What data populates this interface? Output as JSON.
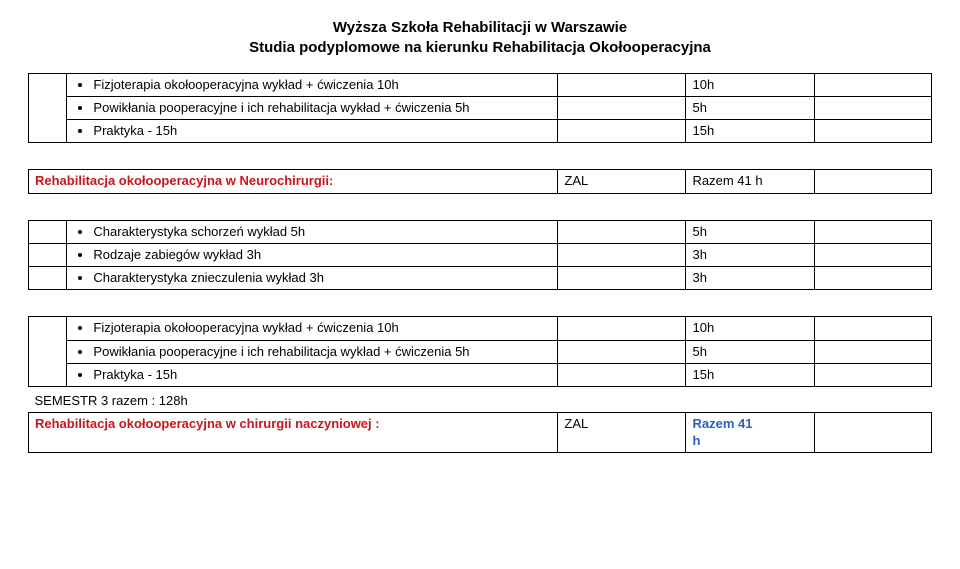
{
  "header": {
    "line1": "Wyższa Szkoła Rehabilitacji w Warszawie",
    "line2": "Studia podyplomowe na kierunku Rehabilitacja Okołooperacyjna"
  },
  "colors": {
    "text": "#000000",
    "red": "#c8161d",
    "blue": "#2e5fbf",
    "border": "#000000",
    "background": "#ffffff"
  },
  "rows": [
    {
      "bullet": "Fizjoterapia okołooperacyjna wykład + ćwiczenia 10h",
      "h": "10h"
    },
    {
      "bullet": "Powikłania pooperacyjne i ich rehabilitacja wykład + ćwiczenia 5h",
      "h": "5h"
    },
    {
      "bullet": "Praktyka - 15h",
      "h": "15h"
    }
  ],
  "section1": {
    "title": "Rehabilitacja okołooperacyjna w Neurochirurgii:",
    "zal": "ZAL",
    "razem": "Razem 41 h"
  },
  "rows2": [
    {
      "bullet": "Charakterystyka schorzeń wykład 5h",
      "h": "5h"
    },
    {
      "bullet": "Rodzaje zabiegów wykład 3h",
      "h": "3h"
    },
    {
      "bullet": "Charakterystyka znieczulenia wykład 3h",
      "h": "3h"
    }
  ],
  "rows3": [
    {
      "bullet": "Fizjoterapia okołooperacyjna wykład + ćwiczenia 10h",
      "h": "10h"
    },
    {
      "bullet": "Powikłania pooperacyjne i ich rehabilitacja wykład + ćwiczenia  5h",
      "h": "5h"
    },
    {
      "bullet": "Praktyka - 15h",
      "h": "15h"
    }
  ],
  "semester": {
    "label": "SEMESTR 3 razem : 128h"
  },
  "section2": {
    "title": "Rehabilitacja okołooperacyjna w chirurgii naczyniowej :",
    "zal": "ZAL",
    "razem1": "Razem 41",
    "razem2": "h"
  }
}
